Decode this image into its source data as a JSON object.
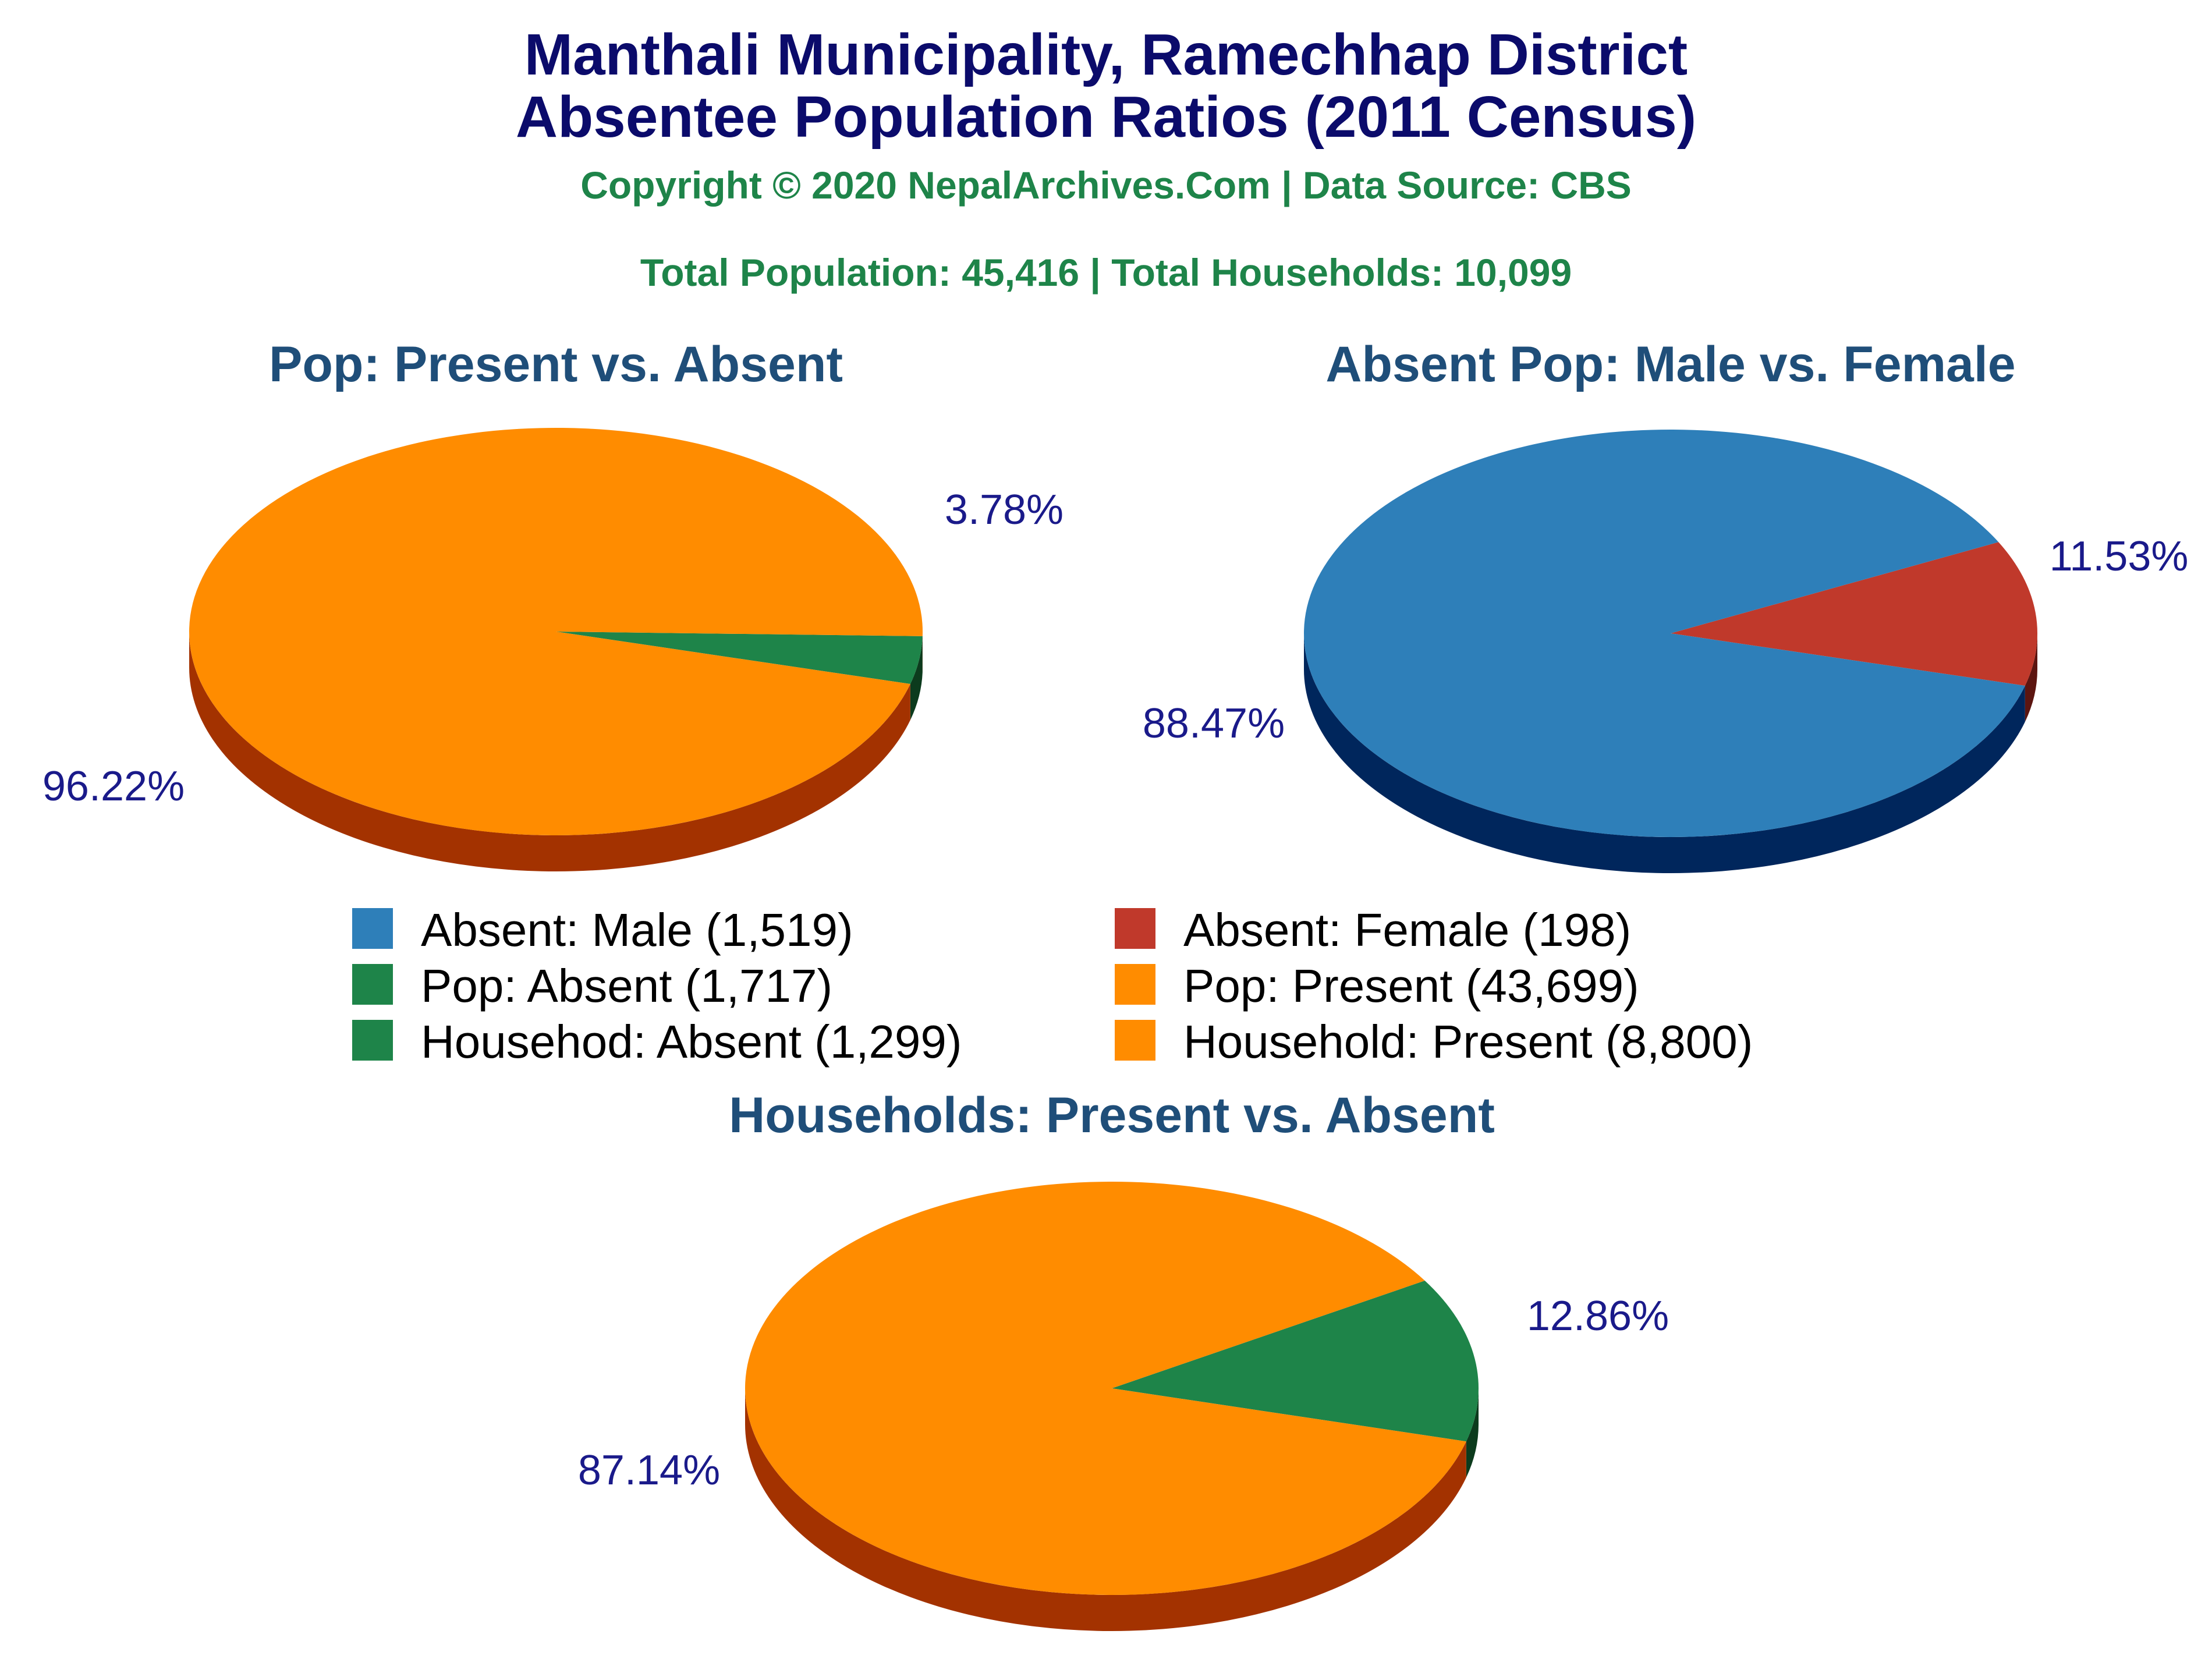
{
  "header": {
    "title_line1": "Manthali Municipality, Ramechhap District",
    "title_line2": "Absentee Population Ratios (2011 Census)",
    "copyright": "Copyright © 2020 NepalArchives.Com | Data Source: CBS",
    "totals": "Total Population: 45,416 | Total Households: 10,099"
  },
  "colors": {
    "title": "#0b0b6b",
    "subtitle": "#1e8449",
    "chart_title": "#1f4e79",
    "label": "#1a1a8a",
    "orange": "#ff8c00",
    "orange_side": "#a33200",
    "green": "#1e8449",
    "green_side": "#0c3b1d",
    "blue": "#2e7fb9",
    "blue_side": "#00265c",
    "red": "#c0392b",
    "red_side": "#5c1510"
  },
  "legend": [
    {
      "label": "Absent: Male (1,519)",
      "color": "#2e7fb9"
    },
    {
      "label": "Absent: Female (198)",
      "color": "#c0392b"
    },
    {
      "label": "Pop: Absent (1,717)",
      "color": "#1e8449"
    },
    {
      "label": "Pop: Present (43,699)",
      "color": "#ff8c00"
    },
    {
      "label": "Househod: Absent (1,299)",
      "color": "#1e8449"
    },
    {
      "label": "Household: Present (8,800)",
      "color": "#ff8c00"
    }
  ],
  "chart_data": [
    {
      "type": "pie",
      "title": "Pop: Present vs. Absent",
      "slices": [
        {
          "label": "Pop: Absent",
          "value": 1717,
          "percent_label": "3.78%",
          "color": "#1e8449",
          "side_color": "#0c3b1d"
        },
        {
          "label": "Pop: Present",
          "value": 43699,
          "percent_label": "96.22%",
          "color": "#ff8c00",
          "side_color": "#a33200"
        }
      ]
    },
    {
      "type": "pie",
      "title": "Absent Pop: Male vs. Female",
      "slices": [
        {
          "label": "Absent: Female",
          "value": 198,
          "percent_label": "11.53%",
          "color": "#c0392b",
          "side_color": "#5c1510"
        },
        {
          "label": "Absent: Male",
          "value": 1519,
          "percent_label": "88.47%",
          "color": "#2e7fb9",
          "side_color": "#00265c"
        }
      ]
    },
    {
      "type": "pie",
      "title": "Households: Present vs. Absent",
      "slices": [
        {
          "label": "Househod: Absent",
          "value": 1299,
          "percent_label": "12.86%",
          "color": "#1e8449",
          "side_color": "#0c3b1d"
        },
        {
          "label": "Household: Present",
          "value": 8800,
          "percent_label": "87.14%",
          "color": "#ff8c00",
          "side_color": "#a33200"
        }
      ]
    }
  ]
}
